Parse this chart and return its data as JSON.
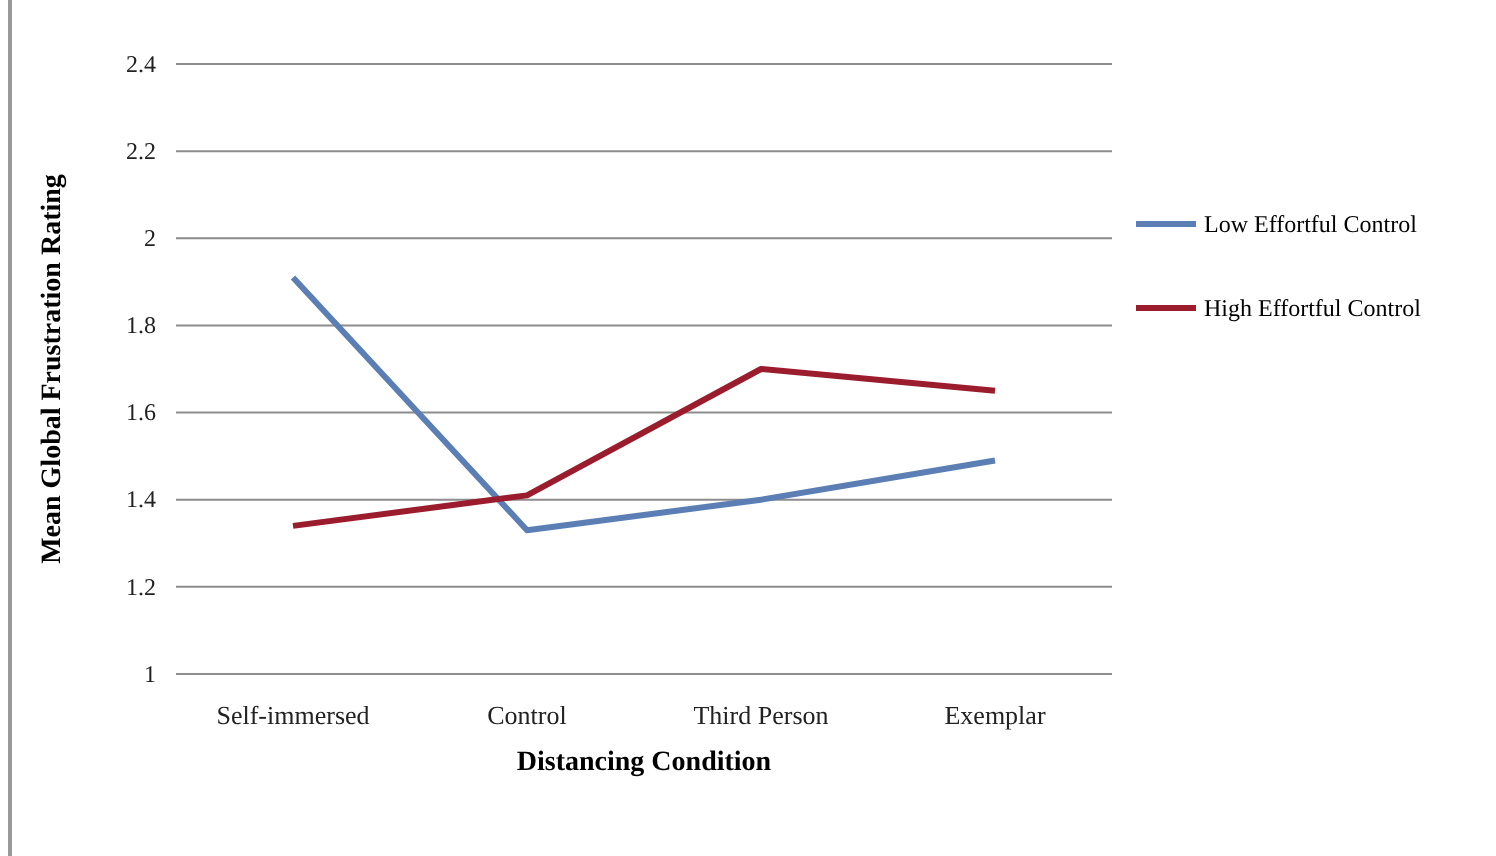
{
  "chart_data": {
    "type": "line",
    "xlabel": "Distancing Condition",
    "ylabel": "Mean Global Frustration Rating",
    "categories": [
      "Self-immersed",
      "Control",
      "Third Person",
      "Exemplar"
    ],
    "series": [
      {
        "name": "Low Effortful Control",
        "color": "#5b7fb5",
        "values": [
          1.91,
          1.33,
          1.4,
          1.49
        ]
      },
      {
        "name": "High Effortful Control",
        "color": "#9b1c2c",
        "values": [
          1.34,
          1.41,
          1.7,
          1.65
        ]
      }
    ],
    "ylim": [
      1,
      2.4
    ],
    "yticks": [
      1,
      1.2,
      1.4,
      1.6,
      1.8,
      2,
      2.2,
      2.4
    ],
    "grid": "y",
    "legend": "right",
    "marker": "none",
    "line_style": "solid"
  }
}
